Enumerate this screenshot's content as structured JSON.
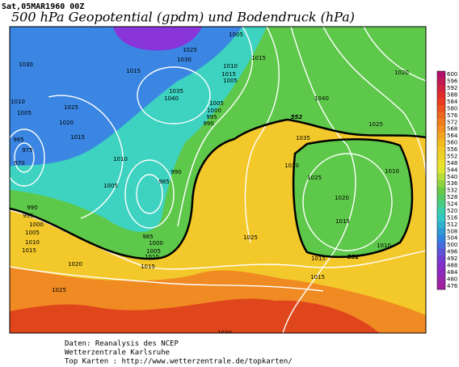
{
  "header": {
    "timestamp": "Sat,05MAR1960 00Z",
    "title": "500 hPa Geopotential (gpdm) und Bodendruck (hPa)"
  },
  "map": {
    "isobar_labels": [
      "1005",
      "1015",
      "1030",
      "1015",
      "1025",
      "1030",
      "1010",
      "1015",
      "1005",
      "1020",
      "1040",
      "1035",
      "1040",
      "1005",
      "1000",
      "995",
      "990",
      "1025",
      "1020",
      "1015",
      "1005",
      "1010",
      "1005",
      "990",
      "985",
      "1035",
      "1025",
      "1030",
      "1025",
      "1010",
      "1020",
      "1015",
      "1010",
      "1025",
      "1015",
      "1015",
      "990",
      "995",
      "1000",
      "1005",
      "1010",
      "1015",
      "1020",
      "985",
      "1000",
      "1005",
      "1010",
      "1015",
      "1025",
      "1030",
      "975",
      "970",
      "985",
      "1010"
    ],
    "height_labels": [
      "552",
      "552"
    ]
  },
  "colorbar": {
    "labels": [
      600,
      596,
      592,
      588,
      584,
      580,
      576,
      572,
      568,
      564,
      560,
      556,
      552,
      548,
      544,
      540,
      536,
      532,
      528,
      524,
      520,
      516,
      512,
      508,
      504,
      500,
      496,
      492,
      488,
      484,
      480,
      476
    ]
  },
  "footer": {
    "lines": [
      "Daten: Reanalysis des NCEP",
      "Wetterzentrale Karlsruhe",
      "Top Karten  :  http://www.wetterzentrale.de/topkarten/"
    ]
  }
}
